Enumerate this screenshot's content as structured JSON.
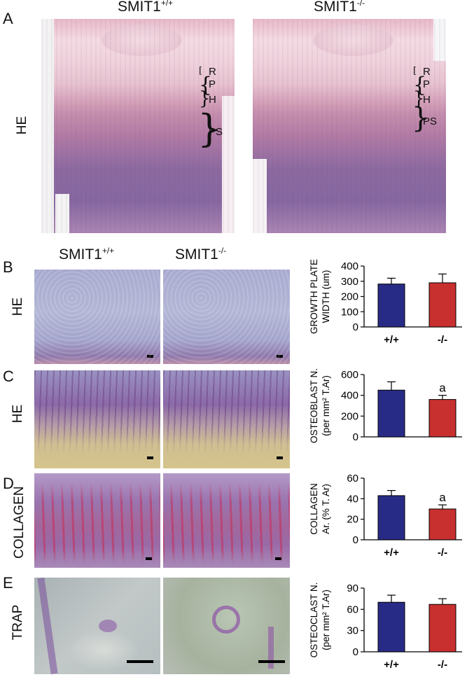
{
  "panel_a": {
    "letter": "A",
    "col_left": {
      "base": "SMIT1",
      "sup": "+/+"
    },
    "col_right": {
      "base": "SMIT1",
      "sup": "-/-"
    },
    "row_label": "HE",
    "zones": [
      "R",
      "P",
      "H",
      "PS"
    ]
  },
  "panels_b_e": {
    "col_left": {
      "base": "SMIT1",
      "sup": "+/+"
    },
    "col_right": {
      "base": "SMIT1",
      "sup": "-/-"
    },
    "rows": [
      {
        "letter": "B",
        "label": "HE"
      },
      {
        "letter": "C",
        "label": "HE"
      },
      {
        "letter": "D",
        "label": "COLLAGEN"
      },
      {
        "letter": "E",
        "label": "TRAP"
      }
    ]
  },
  "colors": {
    "wild_type": "#282b86",
    "knockout": "#c8302f"
  },
  "chart_data": [
    {
      "type": "bar",
      "categories": [
        "+/+",
        "-/-"
      ],
      "values": [
        282,
        290
      ],
      "errors": [
        38,
        58
      ],
      "ylabel_lines": [
        "GROWTH PLATE",
        "WIDTH (um)"
      ],
      "ylim": [
        0,
        400
      ],
      "yticks": [
        0,
        100,
        200,
        300,
        400
      ],
      "annotations": [
        "",
        ""
      ],
      "show_xticks": true
    },
    {
      "type": "bar",
      "categories": [
        "+/+",
        "-/-"
      ],
      "values": [
        450,
        360
      ],
      "errors": [
        80,
        40
      ],
      "ylabel_lines": [
        "OSTEOBLAST N.",
        "(per mm² T.Ar)"
      ],
      "ylim": [
        0,
        600
      ],
      "yticks": [
        0,
        200,
        400,
        600
      ],
      "annotations": [
        "",
        "a"
      ],
      "show_xticks": false
    },
    {
      "type": "bar",
      "categories": [
        "+/+",
        "-/-"
      ],
      "values": [
        43,
        30
      ],
      "errors": [
        5,
        4
      ],
      "ylabel_lines": [
        "COLLAGEN",
        "Ar. (% T. Ar)"
      ],
      "ylim": [
        0,
        60
      ],
      "yticks": [
        0,
        20,
        40,
        60
      ],
      "annotations": [
        "",
        "a"
      ],
      "show_xticks": true
    },
    {
      "type": "bar",
      "categories": [
        "+/+",
        "-/-"
      ],
      "values": [
        70,
        67
      ],
      "errors": [
        10,
        8
      ],
      "ylabel_lines": [
        "OSTEOCLAST N.",
        "(per mm² T.Ar)"
      ],
      "ylim": [
        0,
        90
      ],
      "yticks": [
        0,
        30,
        60,
        90
      ],
      "annotations": [
        "",
        ""
      ],
      "show_xticks": true
    }
  ]
}
